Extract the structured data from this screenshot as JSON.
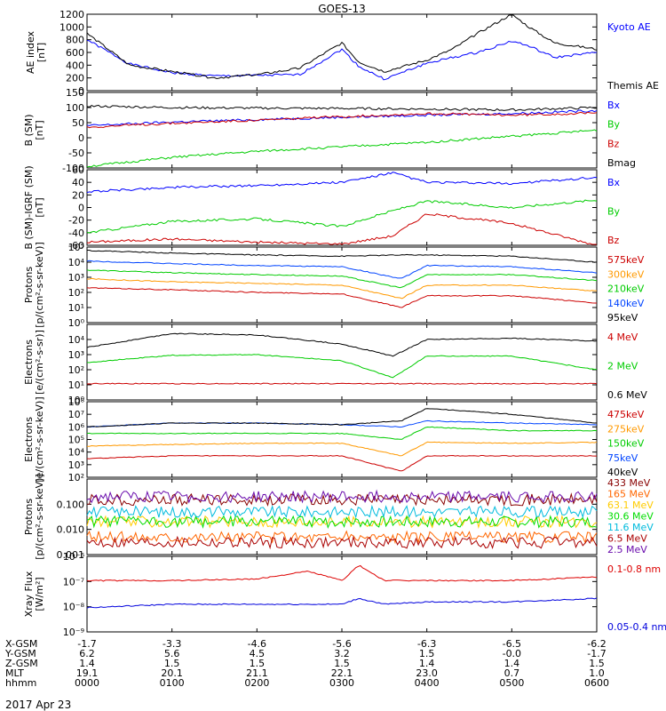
{
  "title": "GOES-13",
  "date": "2017 Apr 23",
  "chart_data": [
    {
      "type": "line",
      "ylabel": "AE index",
      "yunit": "[nT]",
      "ylim": [
        0,
        1200
      ],
      "yticks": [
        "0",
        "200",
        "400",
        "600",
        "800",
        "1000",
        "1200"
      ],
      "series": [
        {
          "name": "Kyoto AE",
          "color": "#0000ff",
          "x": [
            0,
            0.5,
            1,
            1.5,
            2,
            2.5,
            3,
            3.2,
            3.5,
            4,
            4.3,
            4.6,
            5,
            5.2,
            5.5,
            6
          ],
          "y": [
            800,
            420,
            280,
            230,
            240,
            250,
            650,
            380,
            180,
            430,
            520,
            600,
            780,
            700,
            520,
            600
          ]
        },
        {
          "name": "Themis AE",
          "color": "#000000",
          "x": [
            0,
            0.5,
            1,
            1.5,
            2,
            2.5,
            3,
            3.2,
            3.5,
            4,
            4.3,
            4.6,
            5,
            5.2,
            5.5,
            6
          ],
          "y": [
            900,
            400,
            300,
            200,
            250,
            350,
            750,
            450,
            300,
            480,
            650,
            900,
            1200,
            1000,
            750,
            650
          ]
        }
      ]
    },
    {
      "type": "line",
      "ylabel": "B (SM)",
      "yunit": "[nT]",
      "ylim": [
        -100,
        150
      ],
      "yticks": [
        "-100",
        "-50",
        "0",
        "50",
        "100",
        "150"
      ],
      "series": [
        {
          "name": "Bx",
          "color": "#0000ff",
          "x": [
            0,
            1,
            2,
            3,
            4,
            5,
            6
          ],
          "y": [
            40,
            52,
            60,
            68,
            75,
            80,
            90
          ]
        },
        {
          "name": "By",
          "color": "#00cc00",
          "x": [
            0,
            1,
            2,
            3,
            4,
            5,
            6
          ],
          "y": [
            -95,
            -65,
            -45,
            -30,
            -15,
            5,
            25
          ]
        },
        {
          "name": "Bz",
          "color": "#cc0000",
          "x": [
            0,
            1,
            2,
            3,
            4,
            5,
            6
          ],
          "y": [
            35,
            48,
            58,
            70,
            80,
            75,
            82
          ]
        },
        {
          "name": "Bmag",
          "color": "#000000",
          "x": [
            0,
            1,
            2,
            3,
            4,
            5,
            6
          ],
          "y": [
            105,
            100,
            98,
            97,
            95,
            92,
            100
          ]
        }
      ]
    },
    {
      "type": "line",
      "ylabel": "B (SM)-IGRF (SM)",
      "yunit": "[nT]",
      "ylim": [
        -60,
        60
      ],
      "yticks": [
        "-60",
        "-40",
        "-20",
        "0",
        "20",
        "40",
        "60"
      ],
      "series": [
        {
          "name": "Bx",
          "color": "#0000ff",
          "x": [
            0,
            1,
            2,
            3,
            3.6,
            4,
            5,
            6
          ],
          "y": [
            25,
            32,
            35,
            40,
            55,
            40,
            38,
            48
          ]
        },
        {
          "name": "By",
          "color": "#00cc00",
          "x": [
            0,
            1,
            2,
            3,
            3.6,
            4,
            5,
            6
          ],
          "y": [
            -40,
            -22,
            -18,
            -30,
            -5,
            10,
            0,
            12
          ]
        },
        {
          "name": "Bz",
          "color": "#cc0000",
          "x": [
            0,
            1,
            2,
            3,
            3.6,
            4,
            5,
            6
          ],
          "y": [
            -55,
            -50,
            -55,
            -58,
            -45,
            -10,
            -25,
            -60
          ]
        }
      ]
    },
    {
      "type": "line",
      "ylabel": "Protons",
      "yunit": "[p/(cm²-s-sr-keV)]",
      "yscale": "log",
      "ylim": [
        1,
        100000
      ],
      "yticks": [
        "10⁰",
        "10¹",
        "10²",
        "10³",
        "10⁴",
        "10⁵"
      ],
      "series": [
        {
          "name": "575keV",
          "color": "#cc0000",
          "x": [
            0,
            1,
            2,
            3,
            3.7,
            4,
            5,
            6
          ],
          "y": [
            200,
            150,
            100,
            80,
            10,
            60,
            60,
            20
          ]
        },
        {
          "name": "300keV",
          "color": "#ff9900",
          "x": [
            0,
            1,
            2,
            3,
            3.7,
            4,
            5,
            6
          ],
          "y": [
            800,
            500,
            400,
            300,
            40,
            300,
            300,
            120
          ]
        },
        {
          "name": "210keV",
          "color": "#00cc00",
          "x": [
            0,
            1,
            2,
            3,
            3.7,
            4,
            5,
            6
          ],
          "y": [
            3000,
            2000,
            1500,
            1200,
            200,
            1500,
            1500,
            600
          ]
        },
        {
          "name": "140keV",
          "color": "#0044ff",
          "x": [
            0,
            1,
            2,
            3,
            3.7,
            4,
            5,
            6
          ],
          "y": [
            12000,
            8000,
            6000,
            5000,
            800,
            6000,
            5000,
            2000
          ]
        },
        {
          "name": "95keV",
          "color": "#000000",
          "x": [
            0,
            1,
            2,
            3,
            3.7,
            4,
            5,
            6
          ],
          "y": [
            60000,
            40000,
            30000,
            25000,
            30000,
            30000,
            25000,
            10000
          ]
        }
      ]
    },
    {
      "type": "line",
      "ylabel": "Electrons",
      "yunit": "[e/(cm²-s-sr)]",
      "yscale": "log",
      "ylim": [
        1,
        100000
      ],
      "yticks": [
        "10⁰",
        "10¹",
        "10²",
        "10³",
        "10⁴"
      ],
      "series": [
        {
          "name": "4 MeV",
          "color": "#cc0000",
          "x": [
            0,
            1,
            2,
            3,
            4,
            5,
            6
          ],
          "y": [
            12,
            12,
            12,
            12,
            12,
            12,
            12
          ]
        },
        {
          "name": "2 MeV",
          "color": "#00cc00",
          "x": [
            0,
            1,
            2,
            3,
            3.6,
            4,
            5,
            6
          ],
          "y": [
            300,
            900,
            1000,
            400,
            30,
            800,
            800,
            100
          ]
        },
        {
          "name": "0.6 MeV",
          "color": "#000000",
          "x": [
            0,
            1,
            2,
            3,
            3.6,
            4,
            5,
            6
          ],
          "y": [
            3000,
            25000,
            20000,
            5000,
            800,
            10000,
            12000,
            8000
          ]
        }
      ]
    },
    {
      "type": "line",
      "ylabel": "Electrons",
      "yunit": "[e/(cm²-s-sr-keV)]",
      "yscale": "log",
      "ylim": [
        100,
        100000000
      ],
      "yticks": [
        "10²",
        "10³",
        "10⁴",
        "10⁵",
        "10⁶",
        "10⁷",
        "10⁸"
      ],
      "series": [
        {
          "name": "475keV",
          "color": "#cc0000",
          "x": [
            0,
            1,
            2,
            3,
            3.7,
            4,
            5,
            6
          ],
          "y": [
            3000,
            5000,
            5000,
            5000,
            300,
            5000,
            5000,
            5000
          ]
        },
        {
          "name": "275keV",
          "color": "#ff9900",
          "x": [
            0,
            1,
            2,
            3,
            3.7,
            4,
            5,
            6
          ],
          "y": [
            30000,
            40000,
            50000,
            50000,
            5000,
            60000,
            50000,
            60000
          ]
        },
        {
          "name": "150keV",
          "color": "#00cc00",
          "x": [
            0,
            1,
            2,
            3,
            3.7,
            4,
            5,
            6
          ],
          "y": [
            300000,
            300000,
            300000,
            300000,
            100000,
            1000000,
            500000,
            500000
          ]
        },
        {
          "name": "75keV",
          "color": "#0044ff",
          "x": [
            0,
            1,
            2,
            3,
            3.7,
            4,
            5,
            6
          ],
          "y": [
            1000000,
            2000000,
            2000000,
            1500000,
            1000000,
            3000000,
            2000000,
            1500000
          ]
        },
        {
          "name": "40keV",
          "color": "#000000",
          "x": [
            0,
            1,
            2,
            3,
            3.7,
            4,
            5,
            6
          ],
          "y": [
            1000000,
            2000000,
            2000000,
            1500000,
            3000000,
            30000000,
            10000000,
            2000000
          ]
        }
      ]
    },
    {
      "type": "line",
      "ylabel": "Protons",
      "yunit": "[p/(cm²-s-sr-keV)]",
      "yscale": "log",
      "ylim": [
        0.001,
        1
      ],
      "yticks": [
        "0.001",
        "0.010",
        "0.100"
      ],
      "series": [
        {
          "name": "433 MeV",
          "color": "#880000",
          "x": [
            0,
            6
          ],
          "y": [
            0.15,
            0.15
          ]
        },
        {
          "name": "165 MeV",
          "color": "#ff6600",
          "x": [
            0,
            6
          ],
          "y": [
            0.005,
            0.005
          ]
        },
        {
          "name": "63.1 MeV",
          "color": "#ffcc00",
          "x": [
            0,
            6
          ],
          "y": [
            0.02,
            0.02
          ]
        },
        {
          "name": "30.6 MeV",
          "color": "#00dd00",
          "x": [
            0,
            6
          ],
          "y": [
            0.02,
            0.02
          ]
        },
        {
          "name": "11.6 MeV",
          "color": "#00bbdd",
          "x": [
            0,
            6
          ],
          "y": [
            0.05,
            0.05
          ]
        },
        {
          "name": "6.5 MeV",
          "color": "#aa0000",
          "x": [
            0,
            6
          ],
          "y": [
            0.003,
            0.003
          ]
        },
        {
          "name": "2.5 MeV",
          "color": "#6a0dad",
          "x": [
            0,
            6
          ],
          "y": [
            0.2,
            0.2
          ]
        }
      ]
    },
    {
      "type": "line",
      "ylabel": "Xray Flux",
      "yunit": "[W/m²]",
      "yscale": "log",
      "ylim": [
        1e-09,
        1e-08
      ],
      "yticks": [
        "10⁻⁹",
        "10⁻⁸",
        "10⁻⁷",
        "10⁻⁶"
      ],
      "series": [
        {
          "name": "0.1-0.8 nm",
          "color": "#dd0000",
          "x": [
            0,
            1,
            2,
            2.6,
            3,
            3.2,
            3.5,
            4,
            5,
            6
          ],
          "y": [
            1e-07,
            1e-07,
            1.2e-07,
            3e-07,
            1e-07,
            6e-07,
            1e-07,
            1e-07,
            1e-07,
            1.5e-07
          ]
        },
        {
          "name": "0.05-0.4 nm",
          "color": "#0000dd",
          "x": [
            0,
            1,
            2,
            3,
            3.2,
            3.5,
            4,
            5,
            6
          ],
          "y": [
            1e-09,
            1.5e-09,
            1.5e-09,
            1.5e-09,
            3e-09,
            1.5e-09,
            2e-09,
            2e-09,
            3e-09
          ]
        }
      ]
    }
  ],
  "footer": {
    "row_labels": [
      "X-GSM",
      "Y-GSM",
      "Z-GSM",
      "MLT",
      "hhmm"
    ],
    "columns": [
      {
        "X-GSM": "-1.7",
        "Y-GSM": "6.2",
        "Z-GSM": "1.4",
        "MLT": "19.1",
        "hhmm": "0000"
      },
      {
        "X-GSM": "-3.3",
        "Y-GSM": "5.6",
        "Z-GSM": "1.5",
        "MLT": "20.1",
        "hhmm": "0100"
      },
      {
        "X-GSM": "-4.6",
        "Y-GSM": "4.5",
        "Z-GSM": "1.5",
        "MLT": "21.1",
        "hhmm": "0200"
      },
      {
        "X-GSM": "-5.6",
        "Y-GSM": "3.2",
        "Z-GSM": "1.5",
        "MLT": "22.1",
        "hhmm": "0300"
      },
      {
        "X-GSM": "-6.3",
        "Y-GSM": "1.5",
        "Z-GSM": "1.4",
        "MLT": "23.0",
        "hhmm": "0400"
      },
      {
        "X-GSM": "-6.5",
        "Y-GSM": "-0.0",
        "Z-GSM": "1.4",
        "MLT": "0.7",
        "hhmm": "0500"
      },
      {
        "X-GSM": "-6.2",
        "Y-GSM": "-1.7",
        "Z-GSM": "1.5",
        "MLT": "1.0",
        "hhmm": "0600"
      }
    ]
  }
}
